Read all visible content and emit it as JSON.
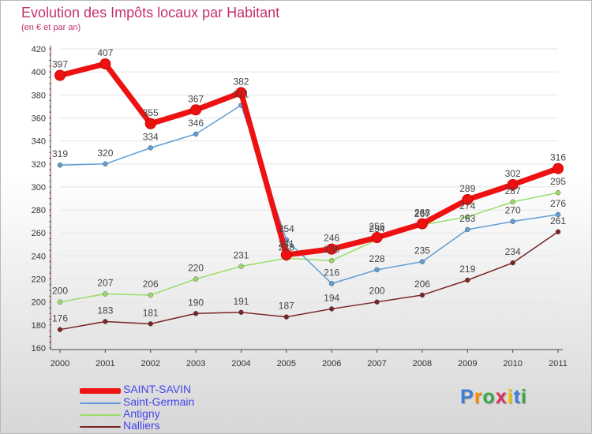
{
  "chart_data": {
    "type": "line",
    "title": "Evolution des Impôts locaux par Habitant",
    "subtitle": "(en € et par an)",
    "xlabel": "",
    "ylabel": "",
    "ylim": [
      160,
      420
    ],
    "yticks": [
      160,
      180,
      200,
      220,
      240,
      260,
      280,
      300,
      320,
      340,
      360,
      380,
      400,
      420
    ],
    "categories": [
      "2000",
      "2001",
      "2002",
      "2003",
      "2004",
      "2005",
      "2006",
      "2007",
      "2008",
      "2009",
      "2010",
      "2011"
    ],
    "series": [
      {
        "name": "SAINT-SAVIN",
        "color": "#ee1111",
        "values": [
          397,
          407,
          355,
          367,
          382,
          241,
          246,
          256,
          268,
          289,
          302,
          316
        ]
      },
      {
        "name": "Saint-Germain",
        "color": "#5f9ed6",
        "values": [
          319,
          320,
          334,
          346,
          371,
          254,
          216,
          228,
          235,
          263,
          270,
          276
        ]
      },
      {
        "name": "Antigny",
        "color": "#99dd66",
        "values": [
          200,
          207,
          206,
          220,
          231,
          238,
          236,
          254,
          267,
          274,
          287,
          295
        ]
      },
      {
        "name": "Nalliers",
        "color": "#7a2424",
        "values": [
          176,
          183,
          181,
          190,
          191,
          187,
          194,
          200,
          206,
          219,
          234,
          261
        ]
      }
    ]
  },
  "brand": {
    "text": "Proxiti"
  }
}
